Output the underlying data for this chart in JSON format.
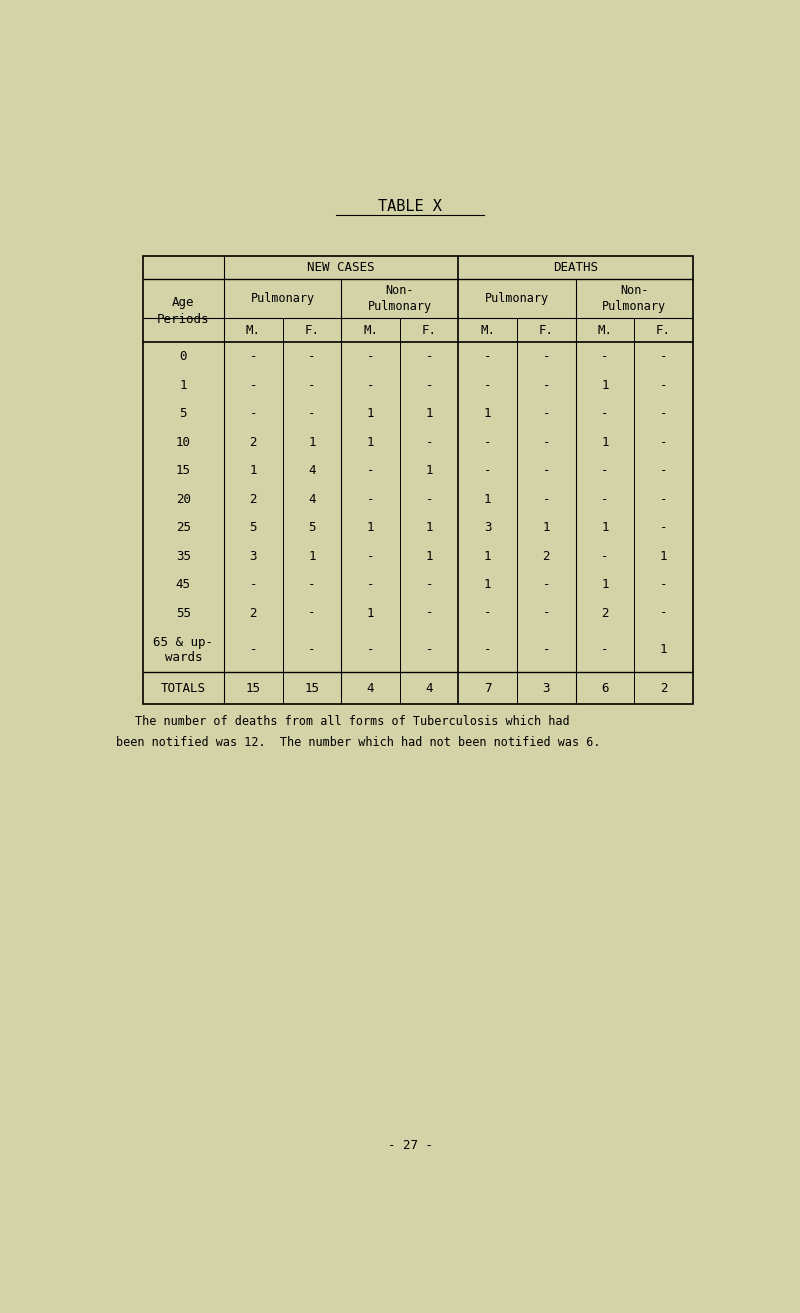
{
  "title": "TABLE X",
  "background_color": "#d4d3a8",
  "age_periods": [
    "0",
    "1",
    "5",
    "10",
    "15",
    "20",
    "25",
    "35",
    "45",
    "55",
    "65 & up-\nwards"
  ],
  "columns": [
    "M.",
    "F.",
    "M.",
    "F.",
    "M.",
    "F.",
    "M.",
    "F."
  ],
  "sub_headers": [
    "Pulmonary",
    "Non-\nPulmonary",
    "Pulmonary",
    "Non-\nPulmonary"
  ],
  "sub_ranges": [
    [
      0,
      2
    ],
    [
      2,
      4
    ],
    [
      4,
      6
    ],
    [
      6,
      8
    ]
  ],
  "data": [
    [
      "-",
      "-",
      "-",
      "-",
      "-",
      "-",
      "-",
      "-"
    ],
    [
      "-",
      "-",
      "-",
      "-",
      "-",
      "-",
      "1",
      "-"
    ],
    [
      "-",
      "-",
      "1",
      "1",
      "1",
      "-",
      "-",
      "-"
    ],
    [
      "2",
      "1",
      "1",
      "-",
      "-",
      "-",
      "1",
      "-"
    ],
    [
      "1",
      "4",
      "-",
      "1",
      "-",
      "-",
      "-",
      "-"
    ],
    [
      "2",
      "4",
      "-",
      "-",
      "1",
      "-",
      "-",
      "-"
    ],
    [
      "5",
      "5",
      "1",
      "1",
      "3",
      "1",
      "1",
      "-"
    ],
    [
      "3",
      "1",
      "-",
      "1",
      "1",
      "2",
      "-",
      "1"
    ],
    [
      "-",
      "-",
      "-",
      "-",
      "1",
      "-",
      "1",
      "-"
    ],
    [
      "2",
      "-",
      "1",
      "-",
      "-",
      "-",
      "2",
      "-"
    ],
    [
      "-",
      "-",
      "-",
      "-",
      "-",
      "-",
      "-",
      "1"
    ]
  ],
  "totals": [
    "15",
    "15",
    "4",
    "4",
    "7",
    "3",
    "6",
    "2"
  ],
  "footnote_line1": "The number of deaths from all forms of Tuberculosis which had",
  "footnote_line2": "been notified was 12.  The number which had not been notified was 6.",
  "page_number": "- 27 -",
  "font_size": 9,
  "title_font_size": 11
}
